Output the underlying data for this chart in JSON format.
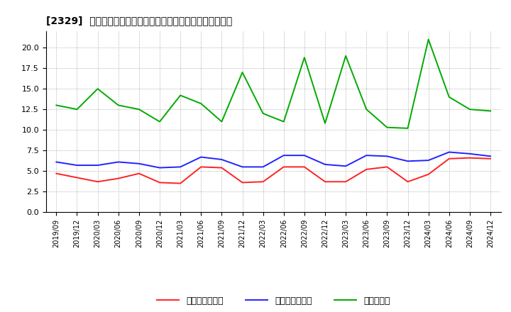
{
  "title": "[2329]  売上債権回転率、買入債務回転率、在庫回転率の推移",
  "x_labels": [
    "2019/09",
    "2019/12",
    "2020/03",
    "2020/06",
    "2020/09",
    "2020/12",
    "2021/03",
    "2021/06",
    "2021/09",
    "2021/12",
    "2022/03",
    "2022/06",
    "2022/09",
    "2022/12",
    "2023/03",
    "2023/06",
    "2023/09",
    "2023/12",
    "2024/03",
    "2024/06",
    "2024/09",
    "2024/12"
  ],
  "urr": [
    4.7,
    4.2,
    3.7,
    4.1,
    4.7,
    3.6,
    3.5,
    5.5,
    5.4,
    3.6,
    3.7,
    5.5,
    5.5,
    3.7,
    3.7,
    5.2,
    5.5,
    3.7,
    4.6,
    6.5,
    6.6,
    6.5
  ],
  "ppr": [
    6.1,
    5.7,
    5.7,
    6.1,
    5.9,
    5.4,
    5.5,
    6.7,
    6.4,
    5.5,
    5.5,
    6.9,
    6.9,
    5.8,
    5.6,
    6.9,
    6.8,
    6.2,
    6.3,
    7.3,
    7.1,
    6.8
  ],
  "inv": [
    13.0,
    12.5,
    15.0,
    13.0,
    12.5,
    11.0,
    14.2,
    13.2,
    11.0,
    17.0,
    12.0,
    11.0,
    18.8,
    10.8,
    19.0,
    12.5,
    10.3,
    10.2,
    21.0,
    14.0,
    12.5,
    12.3
  ],
  "color_urr": "#ff2222",
  "color_ppr": "#2222ff",
  "color_inv": "#00aa00",
  "ylim": [
    0.0,
    22.0
  ],
  "yticks": [
    0.0,
    2.5,
    5.0,
    7.5,
    10.0,
    12.5,
    15.0,
    17.5,
    20.0
  ],
  "background_color": "#ffffff",
  "grid_color": "#999999",
  "legend_urr": "売上債権回転率",
  "legend_ppr": "買入債務回転率",
  "legend_inv": "在庫回転率"
}
